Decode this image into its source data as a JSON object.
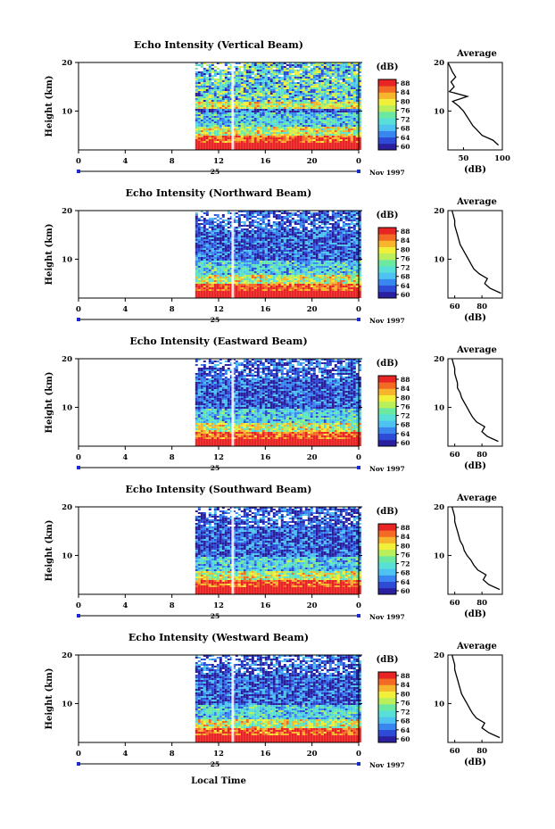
{
  "figure": {
    "xlabel_bottom": "Local Time",
    "day_label": "25",
    "month_label": "Nov 1997",
    "ylabel": "Height (km)",
    "colorbar_unit": "(dB)",
    "colorbar_ticks": [
      "88",
      "84",
      "80",
      "76",
      "72",
      "68",
      "64",
      "60"
    ],
    "avg_title": "Average",
    "avg_xlabel": "(dB)"
  },
  "chart_data": [
    {
      "type": "heatmap",
      "title": "Echo Intensity (Vertical Beam)",
      "xlabel": "",
      "ylabel": "Height (km)",
      "x_ticks": [
        "0",
        "4",
        "8",
        "12",
        "16",
        "20",
        "0"
      ],
      "y_ticks": [
        "20",
        "10"
      ],
      "xlim": [
        0,
        24
      ],
      "ylim": [
        2,
        20
      ],
      "data_start_hour": 10,
      "clim": [
        60,
        88
      ],
      "profile": {
        "xlabel": "(dB)",
        "xlim": [
          30,
          100
        ],
        "x_ticks": [
          "50",
          "100"
        ],
        "heights": [
          3,
          4,
          5,
          6,
          7,
          8,
          9,
          10,
          11,
          12,
          13,
          14,
          15,
          16,
          17,
          18,
          19,
          20
        ],
        "values": [
          95,
          88,
          74,
          68,
          62,
          58,
          54,
          50,
          44,
          36,
          55,
          32,
          38,
          34,
          40,
          36,
          33,
          30
        ]
      }
    },
    {
      "type": "heatmap",
      "title": "Echo Intensity (Northward Beam)",
      "xlabel": "",
      "ylabel": "Height (km)",
      "x_ticks": [
        "0",
        "4",
        "8",
        "12",
        "16",
        "20",
        "0"
      ],
      "y_ticks": [
        "20",
        "10"
      ],
      "xlim": [
        0,
        24
      ],
      "ylim": [
        2,
        20
      ],
      "data_start_hour": 10,
      "clim": [
        60,
        88
      ],
      "profile": {
        "xlabel": "(dB)",
        "xlim": [
          55,
          95
        ],
        "x_ticks": [
          "60",
          "80"
        ],
        "heights": [
          3,
          4,
          5,
          6,
          7,
          8,
          9,
          10,
          11,
          12,
          13,
          14,
          15,
          16,
          17,
          18,
          19,
          20
        ],
        "values": [
          94,
          86,
          82,
          84,
          78,
          74,
          72,
          70,
          68,
          66,
          64,
          63,
          62,
          61,
          60,
          60,
          59,
          58
        ]
      }
    },
    {
      "type": "heatmap",
      "title": "Echo Intensity (Eastward Beam)",
      "xlabel": "",
      "ylabel": "Height (km)",
      "x_ticks": [
        "0",
        "4",
        "8",
        "12",
        "16",
        "20",
        "0"
      ],
      "y_ticks": [
        "20",
        "10"
      ],
      "xlim": [
        0,
        24
      ],
      "ylim": [
        2,
        20
      ],
      "data_start_hour": 10,
      "clim": [
        60,
        88
      ],
      "profile": {
        "xlabel": "(dB)",
        "xlim": [
          55,
          95
        ],
        "x_ticks": [
          "60",
          "80"
        ],
        "heights": [
          3,
          4,
          5,
          6,
          7,
          8,
          9,
          10,
          11,
          12,
          13,
          14,
          15,
          16,
          17,
          18,
          19,
          20
        ],
        "values": [
          92,
          84,
          80,
          82,
          76,
          73,
          71,
          69,
          67,
          65,
          64,
          62,
          62,
          61,
          60,
          60,
          59,
          58
        ]
      }
    },
    {
      "type": "heatmap",
      "title": "Echo Intensity (Southward Beam)",
      "xlabel": "",
      "ylabel": "Height (km)",
      "x_ticks": [
        "0",
        "4",
        "8",
        "12",
        "16",
        "20",
        "0"
      ],
      "y_ticks": [
        "20",
        "10"
      ],
      "xlim": [
        0,
        24
      ],
      "ylim": [
        2,
        20
      ],
      "data_start_hour": 10,
      "clim": [
        60,
        88
      ],
      "profile": {
        "xlabel": "(dB)",
        "xlim": [
          55,
          95
        ],
        "x_ticks": [
          "60",
          "80"
        ],
        "heights": [
          3,
          4,
          5,
          6,
          7,
          8,
          9,
          10,
          11,
          12,
          13,
          14,
          15,
          16,
          17,
          18,
          19,
          20
        ],
        "values": [
          93,
          85,
          81,
          83,
          77,
          74,
          72,
          69,
          67,
          66,
          64,
          63,
          62,
          61,
          60,
          60,
          59,
          58
        ]
      }
    },
    {
      "type": "heatmap",
      "title": "Echo Intensity (Westward Beam)",
      "xlabel": "",
      "ylabel": "Height (km)",
      "x_ticks": [
        "0",
        "4",
        "8",
        "12",
        "16",
        "20",
        "0"
      ],
      "y_ticks": [
        "20",
        "10"
      ],
      "xlim": [
        0,
        24
      ],
      "ylim": [
        2,
        20
      ],
      "data_start_hour": 10,
      "clim": [
        60,
        88
      ],
      "profile": {
        "xlabel": "(dB)",
        "xlim": [
          55,
          95
        ],
        "x_ticks": [
          "60",
          "80"
        ],
        "heights": [
          3,
          4,
          5,
          6,
          7,
          8,
          9,
          10,
          11,
          12,
          13,
          14,
          15,
          16,
          17,
          18,
          19,
          20
        ],
        "values": [
          93,
          85,
          80,
          82,
          76,
          73,
          71,
          69,
          67,
          65,
          64,
          63,
          62,
          61,
          60,
          60,
          59,
          58
        ]
      }
    }
  ],
  "colors": {
    "colormap": [
      "#2a1f9e",
      "#2e4bd6",
      "#3a86f0",
      "#4ec3f2",
      "#58e0d8",
      "#6ce9a0",
      "#b8ef5a",
      "#f2ef3a",
      "#f6b52c",
      "#f26a24",
      "#e92424"
    ],
    "axis": "#000000",
    "tick_marker": "#1a2bcc"
  }
}
